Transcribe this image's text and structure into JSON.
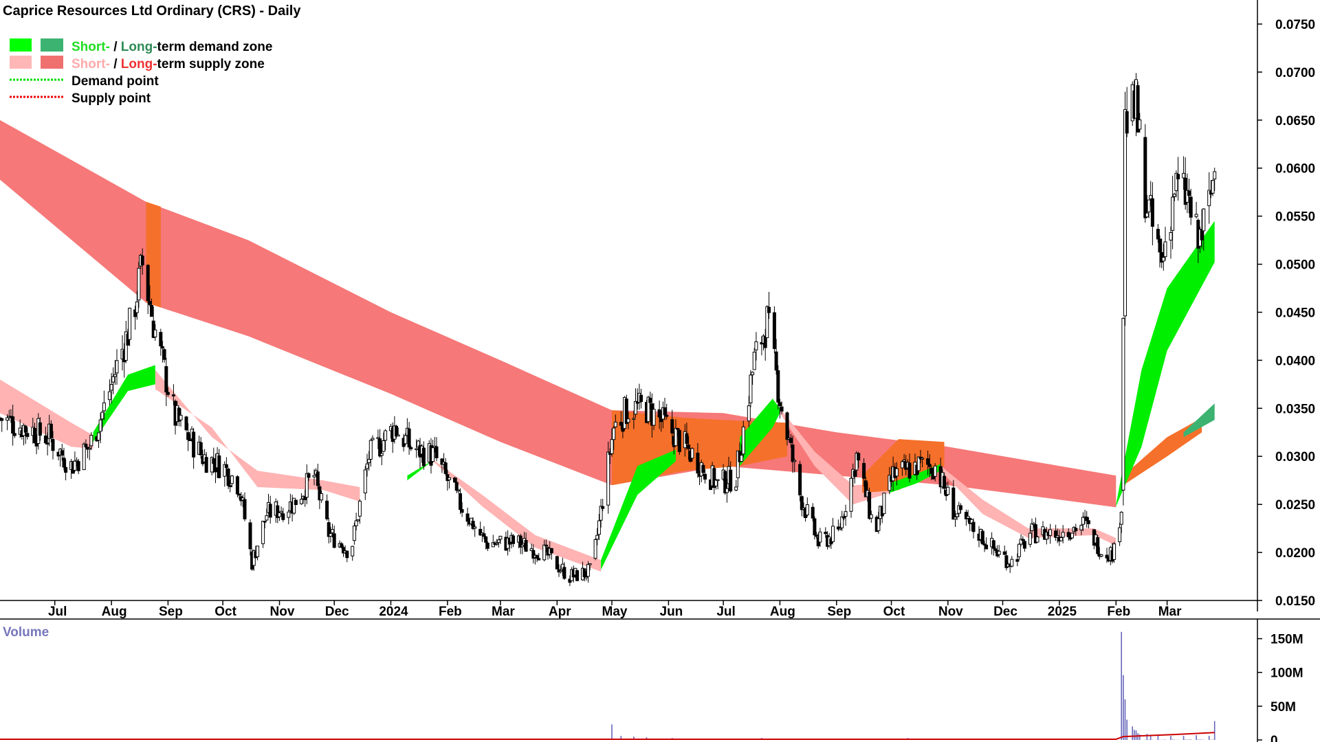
{
  "title": "Caprice Resources Ltd Ordinary (CRS) - Daily",
  "legend": [
    {
      "swatches": [
        "#00ff00",
        "#3cb371"
      ],
      "parts": [
        {
          "text": "Short-",
          "color": "#22dd22"
        },
        {
          "text": " / ",
          "color": "#000000"
        },
        {
          "text": "Long-",
          "color": "#2e8b57"
        },
        {
          "text": "term demand zone",
          "color": "#000000"
        }
      ]
    },
    {
      "swatches": [
        "#ffb6b6",
        "#f07070"
      ],
      "parts": [
        {
          "text": "Short-",
          "color": "#ffaaaa"
        },
        {
          "text": " / ",
          "color": "#000000"
        },
        {
          "text": "Long-",
          "color": "#ee3333"
        },
        {
          "text": "term supply zone",
          "color": "#000000"
        }
      ]
    },
    {
      "dash": "#00dd00",
      "parts": [
        {
          "text": "Demand point",
          "color": "#000000"
        }
      ]
    },
    {
      "dash": "#ee0000",
      "parts": [
        {
          "text": "Supply point",
          "color": "#000000"
        }
      ]
    }
  ],
  "colors": {
    "short_supply": "#ffb3b3",
    "long_supply": "#f67878",
    "overlap": "#f5702a",
    "short_demand": "#00ee00",
    "long_demand": "#3cb371",
    "candle": "#000000",
    "volume": "#6666bb",
    "volume_avg": "#cc0000",
    "volume_label": "#7777bb"
  },
  "chart_data": {
    "type": "candlestick",
    "title": "Caprice Resources Ltd Ordinary (CRS) - Daily",
    "y_axis": {
      "min": 0.015,
      "max": 0.0775,
      "ticks": [
        "0.0150",
        "0.0200",
        "0.0250",
        "0.0300",
        "0.0350",
        "0.0400",
        "0.0450",
        "0.0500",
        "0.0550",
        "0.0600",
        "0.0650",
        "0.0700",
        "0.0750"
      ]
    },
    "x_axis": {
      "start": "2023-06-01",
      "end": "2025-04-01",
      "ticks": [
        {
          "label": "Jul",
          "date": "2023-07-01"
        },
        {
          "label": "Aug",
          "date": "2023-08-01"
        },
        {
          "label": "Sep",
          "date": "2023-09-01"
        },
        {
          "label": "Oct",
          "date": "2023-10-01"
        },
        {
          "label": "Nov",
          "date": "2023-11-01"
        },
        {
          "label": "Dec",
          "date": "2023-12-01"
        },
        {
          "label": "2024",
          "date": "2024-01-01"
        },
        {
          "label": "Feb",
          "date": "2024-02-01"
        },
        {
          "label": "Mar",
          "date": "2024-03-01"
        },
        {
          "label": "Apr",
          "date": "2024-04-01"
        },
        {
          "label": "May",
          "date": "2024-05-01"
        },
        {
          "label": "Jun",
          "date": "2024-06-01"
        },
        {
          "label": "Jul",
          "date": "2024-07-01"
        },
        {
          "label": "Aug",
          "date": "2024-08-01"
        },
        {
          "label": "Sep",
          "date": "2024-09-01"
        },
        {
          "label": "Oct",
          "date": "2024-10-01"
        },
        {
          "label": "Nov",
          "date": "2024-11-01"
        },
        {
          "label": "Dec",
          "date": "2024-12-01"
        },
        {
          "label": "2025",
          "date": "2025-01-01"
        },
        {
          "label": "Feb",
          "date": "2025-02-01"
        },
        {
          "label": "Mar",
          "date": "2025-03-01"
        }
      ]
    },
    "price_anchors": [
      [
        "2023-06-01",
        0.034
      ],
      [
        "2023-06-15",
        0.033
      ],
      [
        "2023-06-28",
        0.032
      ],
      [
        "2023-07-10",
        0.029
      ],
      [
        "2023-07-20",
        0.031
      ],
      [
        "2023-07-28",
        0.035
      ],
      [
        "2023-08-05",
        0.04
      ],
      [
        "2023-08-12",
        0.044
      ],
      [
        "2023-08-18",
        0.05
      ],
      [
        "2023-08-25",
        0.043
      ],
      [
        "2023-09-05",
        0.034
      ],
      [
        "2023-09-20",
        0.03
      ],
      [
        "2023-10-01",
        0.029
      ],
      [
        "2023-10-10",
        0.027
      ],
      [
        "2023-10-17",
        0.019
      ],
      [
        "2023-10-25",
        0.024
      ],
      [
        "2023-11-08",
        0.025
      ],
      [
        "2023-11-20",
        0.028
      ],
      [
        "2023-11-28",
        0.022
      ],
      [
        "2023-12-10",
        0.02
      ],
      [
        "2023-12-20",
        0.03
      ],
      [
        "2024-01-03",
        0.033
      ],
      [
        "2024-01-12",
        0.031
      ],
      [
        "2024-01-25",
        0.03
      ],
      [
        "2024-02-08",
        0.025
      ],
      [
        "2024-02-22",
        0.021
      ],
      [
        "2024-03-10",
        0.021
      ],
      [
        "2024-03-25",
        0.02
      ],
      [
        "2024-04-08",
        0.0175
      ],
      [
        "2024-04-20",
        0.018
      ],
      [
        "2024-05-02",
        0.033
      ],
      [
        "2024-05-10",
        0.035
      ],
      [
        "2024-05-20",
        0.035
      ],
      [
        "2024-06-01",
        0.033
      ],
      [
        "2024-06-15",
        0.03
      ],
      [
        "2024-06-28",
        0.027
      ],
      [
        "2024-07-08",
        0.028
      ],
      [
        "2024-07-18",
        0.04
      ],
      [
        "2024-07-25",
        0.044
      ],
      [
        "2024-08-02",
        0.035
      ],
      [
        "2024-08-12",
        0.026
      ],
      [
        "2024-08-22",
        0.021
      ],
      [
        "2024-09-02",
        0.022
      ],
      [
        "2024-09-12",
        0.03
      ],
      [
        "2024-09-22",
        0.022
      ],
      [
        "2024-10-02",
        0.028
      ],
      [
        "2024-10-15",
        0.029
      ],
      [
        "2024-10-25",
        0.029
      ],
      [
        "2024-11-05",
        0.024
      ],
      [
        "2024-11-18",
        0.022
      ],
      [
        "2024-11-28",
        0.02
      ],
      [
        "2024-12-06",
        0.019
      ],
      [
        "2024-12-16",
        0.022
      ],
      [
        "2024-12-31",
        0.022
      ],
      [
        "2025-01-15",
        0.023
      ],
      [
        "2025-01-25",
        0.02
      ],
      [
        "2025-01-31",
        0.02
      ],
      [
        "2025-02-04",
        0.025
      ],
      [
        "2025-02-06",
        0.065
      ],
      [
        "2025-02-12",
        0.066
      ],
      [
        "2025-02-18",
        0.056
      ],
      [
        "2025-02-26",
        0.05
      ],
      [
        "2025-03-05",
        0.058
      ],
      [
        "2025-03-12",
        0.057
      ],
      [
        "2025-03-18",
        0.052
      ],
      [
        "2025-03-24",
        0.056
      ],
      [
        "2025-03-27",
        0.06
      ]
    ],
    "long_term_supply_zone": [
      [
        "2023-06-01",
        0.0588,
        0.065
      ],
      [
        "2023-08-20",
        0.046,
        0.0565
      ],
      [
        "2023-10-15",
        0.0425,
        0.0525
      ],
      [
        "2024-01-01",
        0.0365,
        0.045
      ],
      [
        "2024-03-01",
        0.0315,
        0.04
      ],
      [
        "2024-05-01",
        0.027,
        0.0348
      ],
      [
        "2024-07-01",
        0.029,
        0.0345
      ],
      [
        "2024-09-01",
        0.028,
        0.0325
      ],
      [
        "2024-11-01",
        0.027,
        0.031
      ],
      [
        "2025-01-01",
        0.0255,
        0.029
      ],
      [
        "2025-02-01",
        0.0247,
        0.028
      ]
    ],
    "short_term_supply_zones": [
      [
        [
          "2023-06-01",
          0.0345,
          0.038
        ],
        [
          "2023-07-10",
          0.031,
          0.0335
        ],
        [
          "2023-07-22",
          0.0308,
          0.0322
        ]
      ],
      [
        [
          "2023-08-25",
          0.037,
          0.039
        ],
        [
          "2023-09-25",
          0.033,
          0.032
        ],
        [
          "2023-10-20",
          0.0268,
          0.0285
        ],
        [
          "2023-11-25",
          0.0265,
          0.0275
        ],
        [
          "2023-12-15",
          0.0253,
          0.0268
        ]
      ],
      [
        [
          "2024-01-20",
          0.0302,
          0.0302
        ],
        [
          "2024-02-20",
          0.0248,
          0.026
        ],
        [
          "2024-03-20",
          0.0205,
          0.0218
        ],
        [
          "2024-04-25",
          0.018,
          0.0192
        ]
      ],
      [
        [
          "2024-08-01",
          0.0345,
          0.035
        ],
        [
          "2024-08-20",
          0.029,
          0.0305
        ],
        [
          "2024-09-10",
          0.025,
          0.027
        ],
        [
          "2024-09-30",
          0.0262,
          0.0272
        ]
      ],
      [
        [
          "2024-10-28",
          0.0285,
          0.029
        ],
        [
          "2024-11-20",
          0.024,
          0.0255
        ],
        [
          "2024-12-15",
          0.0215,
          0.0225
        ],
        [
          "2025-01-20",
          0.0218,
          0.0225
        ],
        [
          "2025-02-01",
          0.0207,
          0.0215
        ]
      ]
    ],
    "short_term_demand_zones": [
      [
        [
          "2023-07-22",
          0.0315,
          0.0325
        ],
        [
          "2023-08-10",
          0.0368,
          0.0385
        ],
        [
          "2023-08-25",
          0.0375,
          0.0395
        ]
      ],
      [
        [
          "2024-01-10",
          0.0275,
          0.028
        ],
        [
          "2024-01-25",
          0.0297,
          0.0297
        ]
      ],
      [
        [
          "2024-04-25",
          0.0182,
          0.0192
        ],
        [
          "2024-05-15",
          0.026,
          0.029
        ],
        [
          "2024-06-05",
          0.0295,
          0.0307
        ]
      ],
      [
        [
          "2024-07-10",
          0.029,
          0.032
        ],
        [
          "2024-07-28",
          0.033,
          0.036
        ],
        [
          "2024-08-01",
          0.0345,
          0.035
        ]
      ],
      [
        [
          "2024-09-30",
          0.0262,
          0.0272
        ],
        [
          "2024-10-15",
          0.0272,
          0.0282
        ],
        [
          "2024-10-28",
          0.0285,
          0.0292
        ]
      ],
      [
        [
          "2025-02-01",
          0.0248,
          0.025
        ],
        [
          "2025-02-15",
          0.031,
          0.039
        ],
        [
          "2025-03-01",
          0.041,
          0.0475
        ],
        [
          "2025-03-27",
          0.0502,
          0.0545
        ]
      ]
    ],
    "overlap_zones": [
      [
        [
          "2023-08-20",
          0.046,
          0.0565
        ],
        [
          "2023-08-28",
          0.0455,
          0.056
        ]
      ],
      [
        [
          "2024-05-01",
          0.027,
          0.0348
        ],
        [
          "2024-06-10",
          0.0285,
          0.034
        ],
        [
          "2024-07-10",
          0.029,
          0.0337
        ],
        [
          "2024-08-05",
          0.03,
          0.0335
        ]
      ],
      [
        [
          "2024-09-15",
          0.0262,
          0.028
        ],
        [
          "2024-10-05",
          0.0265,
          0.0318
        ],
        [
          "2024-10-30",
          0.029,
          0.0315
        ]
      ],
      [
        [
          "2025-02-05",
          0.027,
          0.028
        ],
        [
          "2025-03-01",
          0.03,
          0.032
        ],
        [
          "2025-03-20",
          0.0325,
          0.034
        ]
      ]
    ],
    "long_term_demand_zone": [
      [
        "2025-03-10",
        0.032,
        0.0325
      ],
      [
        "2025-03-27",
        0.0338,
        0.0355
      ]
    ],
    "volume": {
      "label": "Volume",
      "axis": {
        "min": 0,
        "max": 175,
        "ticks": [
          {
            "label": "0",
            "value": 0
          },
          {
            "label": "50M",
            "value": 50
          },
          {
            "label": "100M",
            "value": 100
          },
          {
            "label": "150M",
            "value": 150
          }
        ]
      },
      "baseline_millions": 0.6,
      "spikes": [
        [
          "2024-05-01",
          23
        ],
        [
          "2024-05-06",
          6
        ],
        [
          "2024-05-13",
          5
        ],
        [
          "2024-05-20",
          4
        ],
        [
          "2024-06-03",
          3
        ],
        [
          "2024-07-22",
          3
        ],
        [
          "2024-10-10",
          3
        ],
        [
          "2025-02-04",
          160
        ],
        [
          "2025-02-05",
          96
        ],
        [
          "2025-02-06",
          60
        ],
        [
          "2025-02-07",
          30
        ],
        [
          "2025-02-10",
          20
        ],
        [
          "2025-02-11",
          15
        ],
        [
          "2025-02-12",
          14
        ],
        [
          "2025-02-13",
          10
        ],
        [
          "2025-02-14",
          8
        ],
        [
          "2025-02-18",
          9
        ],
        [
          "2025-02-20",
          7
        ],
        [
          "2025-02-24",
          7
        ],
        [
          "2025-03-03",
          6
        ],
        [
          "2025-03-10",
          6
        ],
        [
          "2025-03-17",
          7
        ],
        [
          "2025-03-24",
          6
        ],
        [
          "2025-03-27",
          28
        ]
      ],
      "average_line": [
        [
          "2023-06-01",
          1
        ],
        [
          "2025-02-01",
          1
        ],
        [
          "2025-02-05",
          5
        ],
        [
          "2025-03-05",
          8
        ],
        [
          "2025-03-27",
          11
        ]
      ]
    }
  }
}
